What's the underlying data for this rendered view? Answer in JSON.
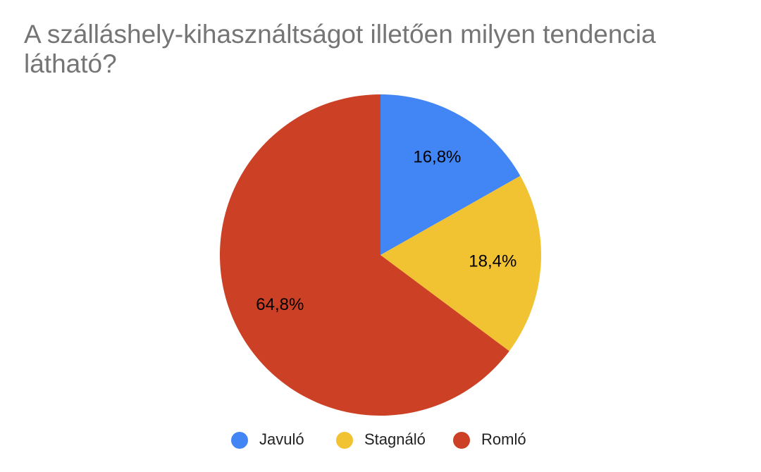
{
  "chart_data": {
    "type": "pie",
    "title": "A szálláshely-kihasználtságot illetően milyen tendencia látható?",
    "categories": [
      "Javuló",
      "Stagnáló",
      "Romló"
    ],
    "values": [
      16.8,
      18.4,
      64.8
    ],
    "value_labels": [
      "16,8%",
      "18,4%",
      "64,8%"
    ],
    "colors": [
      "#4285f4",
      "#f1c232",
      "#cc4125"
    ],
    "legend": "bottom"
  }
}
